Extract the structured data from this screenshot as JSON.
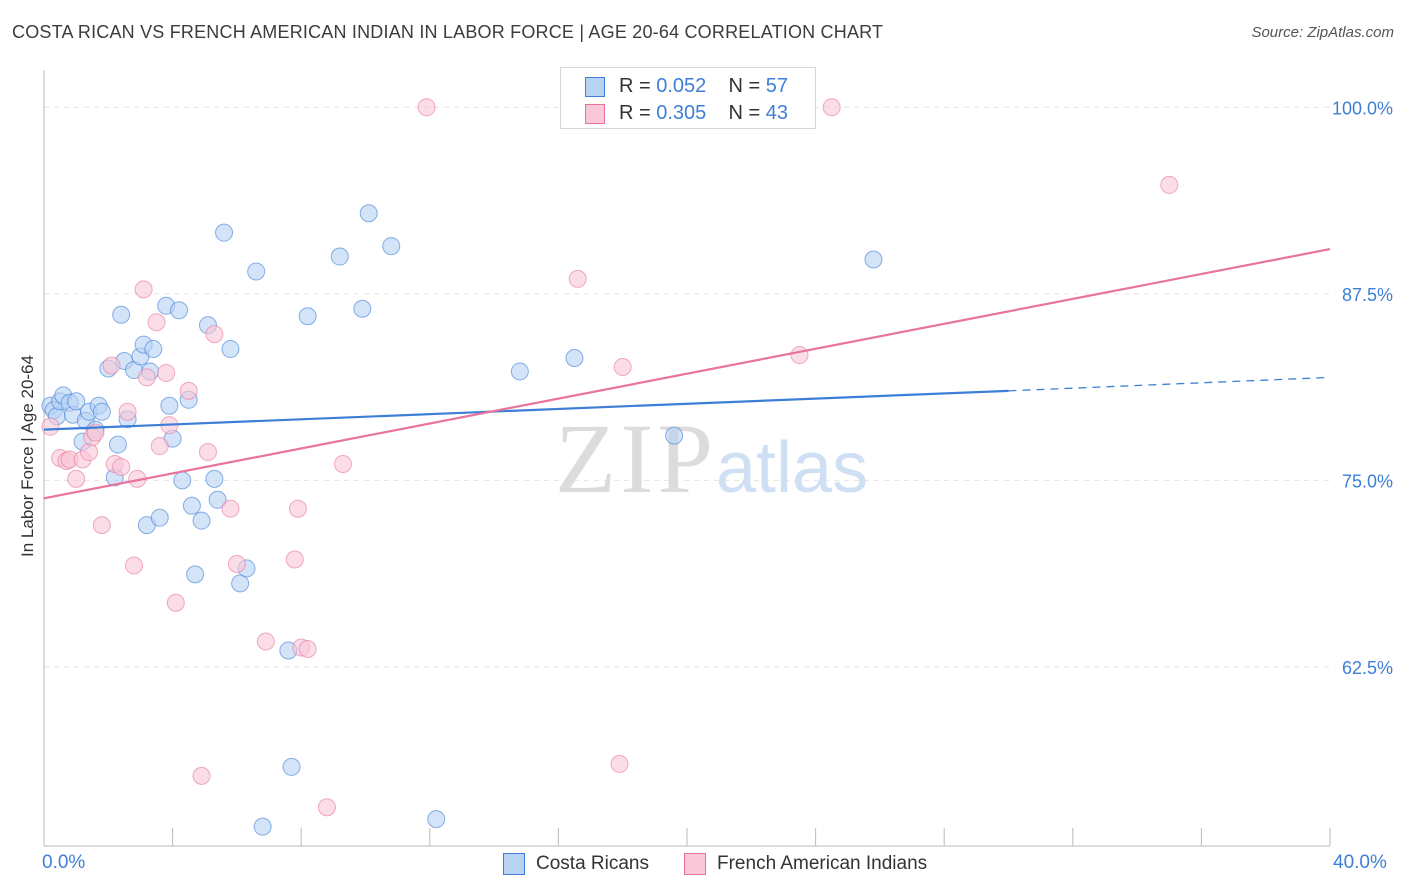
{
  "title": "COSTA RICAN VS FRENCH AMERICAN INDIAN IN LABOR FORCE | AGE 20-64 CORRELATION CHART",
  "source": "Source: ZipAtlas.com",
  "watermark": {
    "zip": "ZIP",
    "atlas": "atlas"
  },
  "legend": {
    "rows": [
      {
        "r_label": "R =",
        "r_value": "0.052",
        "n_label": "N =",
        "n_value": "57",
        "color": "#3d7fd6",
        "fill": "#b8d2f3"
      },
      {
        "r_label": "R =",
        "r_value": "0.305",
        "n_label": "N =",
        "n_value": "43",
        "color": "#e8749d",
        "fill": "#f9c7d7"
      }
    ]
  },
  "bottom_legend": {
    "series1": "Costa Ricans",
    "series2": "French American Indians"
  },
  "chart_data": {
    "type": "scatter",
    "ylabel": "In Labor Force | Age 20-64",
    "xlim": [
      0,
      40
    ],
    "ylim": [
      50.5,
      102.5
    ],
    "x_tick_labels": [
      "0.0%",
      "40.0%"
    ],
    "y_ticks": [
      62.5,
      75.0,
      87.5,
      100.0
    ],
    "y_tick_labels": [
      "62.5%",
      "75.0%",
      "87.5%",
      "100.0%"
    ],
    "grid": true,
    "legend_position": "top-center",
    "series": [
      {
        "name": "Costa Ricans",
        "color": "#3d7fd6",
        "fill": "#b8d2f3",
        "points": [
          [
            0.2,
            80.0
          ],
          [
            0.3,
            79.7
          ],
          [
            0.4,
            79.3
          ],
          [
            0.5,
            80.3
          ],
          [
            0.6,
            80.7
          ],
          [
            0.8,
            80.2
          ],
          [
            0.9,
            79.4
          ],
          [
            1.0,
            80.3
          ],
          [
            1.2,
            77.6
          ],
          [
            1.3,
            79.0
          ],
          [
            1.4,
            79.6
          ],
          [
            1.6,
            78.4
          ],
          [
            1.7,
            80.0
          ],
          [
            1.8,
            79.6
          ],
          [
            2.0,
            82.5
          ],
          [
            2.2,
            75.2
          ],
          [
            2.3,
            77.4
          ],
          [
            2.4,
            86.1
          ],
          [
            2.5,
            83.0
          ],
          [
            2.6,
            79.1
          ],
          [
            2.8,
            82.4
          ],
          [
            3.0,
            83.3
          ],
          [
            3.1,
            84.1
          ],
          [
            3.2,
            72.0
          ],
          [
            3.3,
            82.3
          ],
          [
            3.4,
            83.8
          ],
          [
            3.6,
            72.5
          ],
          [
            3.8,
            86.7
          ],
          [
            3.9,
            80.0
          ],
          [
            4.0,
            77.8
          ],
          [
            4.2,
            86.4
          ],
          [
            4.3,
            75.0
          ],
          [
            4.5,
            80.4
          ],
          [
            4.6,
            73.3
          ],
          [
            4.9,
            72.3
          ],
          [
            5.1,
            85.4
          ],
          [
            4.7,
            68.7
          ],
          [
            5.3,
            75.1
          ],
          [
            5.4,
            73.7
          ],
          [
            5.6,
            91.6
          ],
          [
            5.8,
            83.8
          ],
          [
            6.1,
            68.1
          ],
          [
            6.3,
            69.1
          ],
          [
            6.6,
            89.0
          ],
          [
            6.8,
            51.8
          ],
          [
            7.6,
            63.6
          ],
          [
            7.7,
            55.8
          ],
          [
            8.2,
            86.0
          ],
          [
            9.2,
            90.0
          ],
          [
            9.9,
            86.5
          ],
          [
            10.1,
            92.9
          ],
          [
            10.8,
            90.7
          ],
          [
            12.2,
            52.3
          ],
          [
            14.8,
            82.3
          ],
          [
            16.5,
            83.2
          ],
          [
            19.6,
            78.0
          ],
          [
            25.8,
            89.8
          ]
        ]
      },
      {
        "name": "French American Indians",
        "color": "#e8749d",
        "fill": "#f9c7d7",
        "points": [
          [
            0.2,
            78.6
          ],
          [
            0.5,
            76.5
          ],
          [
            0.7,
            76.3
          ],
          [
            0.8,
            76.4
          ],
          [
            1.0,
            75.1
          ],
          [
            1.2,
            76.4
          ],
          [
            1.4,
            76.9
          ],
          [
            1.5,
            77.9
          ],
          [
            1.6,
            78.2
          ],
          [
            1.8,
            72.0
          ],
          [
            2.1,
            82.7
          ],
          [
            2.2,
            76.1
          ],
          [
            2.4,
            75.9
          ],
          [
            2.6,
            79.6
          ],
          [
            2.8,
            69.3
          ],
          [
            2.9,
            75.1
          ],
          [
            3.1,
            87.8
          ],
          [
            3.2,
            81.9
          ],
          [
            3.5,
            85.6
          ],
          [
            3.6,
            77.3
          ],
          [
            3.8,
            82.2
          ],
          [
            3.9,
            78.7
          ],
          [
            4.1,
            66.8
          ],
          [
            4.5,
            81.0
          ],
          [
            4.9,
            55.2
          ],
          [
            5.1,
            76.9
          ],
          [
            5.3,
            84.8
          ],
          [
            5.8,
            73.1
          ],
          [
            6.0,
            69.4
          ],
          [
            6.9,
            64.2
          ],
          [
            7.8,
            69.7
          ],
          [
            7.9,
            73.1
          ],
          [
            8.0,
            63.8
          ],
          [
            8.2,
            63.7
          ],
          [
            8.8,
            53.1
          ],
          [
            9.3,
            76.1
          ],
          [
            11.9,
            100.0
          ],
          [
            16.6,
            88.5
          ],
          [
            17.9,
            56.0
          ],
          [
            18.0,
            82.6
          ],
          [
            23.5,
            83.4
          ],
          [
            24.5,
            100.0
          ],
          [
            35.0,
            94.8
          ]
        ]
      }
    ],
    "trend_lines": [
      {
        "series": "Costa Ricans",
        "x_start": 0,
        "x_end": 30.0,
        "y_start": 78.4,
        "y_end": 81.0,
        "dashed_to_x": 40,
        "dashed_to_y": 81.9
      },
      {
        "series": "French American Indians",
        "x_start": 0,
        "x_end": 40,
        "y_start": 73.8,
        "y_end": 90.5
      }
    ]
  }
}
